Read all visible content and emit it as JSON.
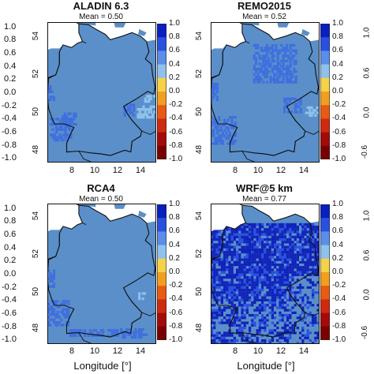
{
  "panels": [
    {
      "title": "ALADIN 6.3",
      "mean": "Mean = 0.50"
    },
    {
      "title": "REMO2015",
      "mean": "Mean = 0.52"
    },
    {
      "title": "RCA4",
      "mean": "Mean = 0.50"
    },
    {
      "title": "WRF@5 km",
      "mean": "Mean = 0.77"
    }
  ],
  "y_ticks": [
    "54",
    "52",
    "50",
    "48"
  ],
  "x_ticks": [
    "8",
    "10",
    "12",
    "14"
  ],
  "colorbar_ticks": [
    "1.0",
    "0.8",
    "0.6",
    "0.4",
    "0.2",
    "0.0",
    "-0.2",
    "-0.4",
    "-0.6",
    "-0.8",
    "-1.0"
  ],
  "colorbar_colors": [
    "#0a1fbf",
    "#2a50e0",
    "#5b8ee8",
    "#8ec2ec",
    "#f6d24a",
    "#f0a020",
    "#e85b14",
    "#cf2a10",
    "#a30a0a",
    "#7a0000"
  ],
  "xlabel": "Longitude [°]",
  "chart_data": {
    "type": "heatmap",
    "x_range": [
      6,
      15
    ],
    "y_range": [
      47,
      55
    ],
    "value_range": [
      -1.0,
      1.0
    ],
    "panels": [
      {
        "title": "ALADIN 6.3",
        "mean": 0.5
      },
      {
        "title": "REMO2015",
        "mean": 0.52
      },
      {
        "title": "RCA4",
        "mean": 0.5
      },
      {
        "title": "WRF@5 km",
        "mean": 0.77
      }
    ]
  }
}
